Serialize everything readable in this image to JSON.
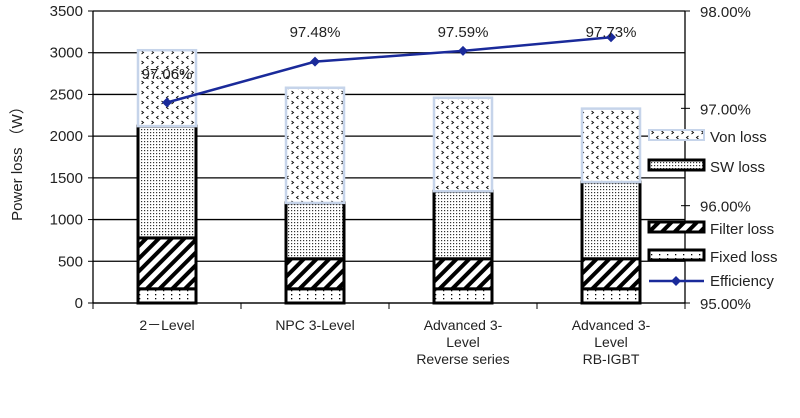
{
  "chart_data": {
    "type": "bar",
    "stacked": true,
    "ylabel": "Power loss （W）",
    "ylim": [
      0,
      3500
    ],
    "yticks": [
      0,
      500,
      1000,
      1500,
      2000,
      2500,
      3000,
      3500
    ],
    "y2lim": [
      95,
      98
    ],
    "y2ticks": [
      "95.00%",
      "96.00%",
      "97.00%",
      "98.00%"
    ],
    "grid": true,
    "legend_position": "right",
    "categories": [
      [
        "2－Level"
      ],
      [
        "NPC 3-Level"
      ],
      [
        "Advanced 3-",
        "Level",
        "Reverse series"
      ],
      [
        "Advanced 3-",
        "Level",
        "RB-IGBT"
      ]
    ],
    "series": [
      {
        "name": "Fixed loss",
        "values": [
          170,
          170,
          170,
          170
        ]
      },
      {
        "name": "Filter loss",
        "values": [
          610,
          360,
          360,
          360
        ]
      },
      {
        "name": "SW loss",
        "values": [
          1340,
          670,
          810,
          920
        ]
      },
      {
        "name": "Von loss",
        "values": [
          910,
          1380,
          1120,
          880
        ]
      }
    ],
    "line_series": {
      "name": "Efficiency",
      "axis": "right",
      "values": [
        97.06,
        97.48,
        97.59,
        97.73
      ],
      "labels": [
        "97.06%",
        "97.48%",
        "97.59%",
        "97.73%"
      ],
      "color": "#1a2a9a"
    }
  }
}
